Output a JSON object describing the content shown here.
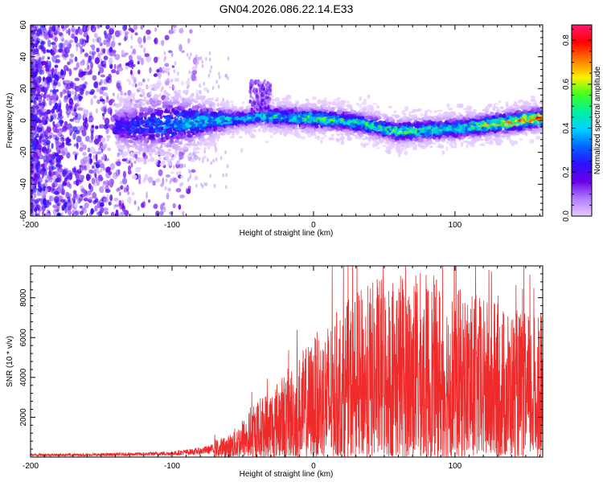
{
  "figure_title": "GN04.2026.086.22.14.E33",
  "colors": {
    "snr_line": "#ee2a2a",
    "colormap": [
      "#e6ccff",
      "#b07cff",
      "#6a00e8",
      "#2b10ff",
      "#0066ff",
      "#00d2ff",
      "#00f0a0",
      "#40ff20",
      "#ffee00",
      "#ff7700",
      "#ff0000",
      "#ff1870"
    ]
  },
  "chart_data": [
    {
      "id": "spectrogram",
      "type": "heatmap",
      "title": "GN04.2026.086.22.14.E33",
      "xlabel": "Height of straight line (km)",
      "ylabel": "Frequency (Hz)",
      "xlim": [
        -200,
        162
      ],
      "ylim": [
        -60,
        60
      ],
      "xticks": [
        -200,
        -100,
        0,
        100
      ],
      "xtick_labels": [
        "-200",
        "-100",
        "0",
        "100"
      ],
      "yticks": [
        -60,
        -40,
        -20,
        0,
        20,
        40,
        60
      ],
      "ytick_labels": [
        "-60",
        "-40",
        "-20",
        "0",
        "20",
        "40",
        "60"
      ],
      "colorbar": {
        "label": "Normalized spectral amplitude",
        "range": [
          0,
          0.87
        ],
        "ticks": [
          0.0,
          0.2,
          0.4,
          0.6,
          0.8
        ],
        "tick_labels": [
          "0.0",
          "0.2",
          "0.4",
          "0.6",
          "0.8"
        ]
      },
      "ridge_center_freq": {
        "x": [
          -200,
          -150,
          -130,
          -100,
          -70,
          -50,
          -35,
          -20,
          0,
          20,
          40,
          60,
          80,
          100,
          120,
          140,
          162
        ],
        "y": [
          0,
          -2,
          -4,
          -2,
          0,
          1,
          3,
          2,
          1,
          0,
          -3,
          -7,
          -6,
          -5,
          -3,
          -1,
          2
        ]
      },
      "ridge_amplitude": {
        "x": [
          -200,
          -150,
          -130,
          -100,
          -80,
          -60,
          -40,
          -20,
          0,
          20,
          40,
          60,
          80,
          100,
          120,
          140,
          162
        ],
        "y": [
          0.12,
          0.22,
          0.28,
          0.38,
          0.42,
          0.45,
          0.46,
          0.45,
          0.55,
          0.5,
          0.48,
          0.55,
          0.52,
          0.5,
          0.6,
          0.72,
          0.82
        ]
      }
    },
    {
      "id": "snr",
      "type": "line",
      "xlabel": "Height of straight line (km)",
      "ylabel": "SNR (10 * v/v)",
      "xlim": [
        -200,
        162
      ],
      "ylim": [
        0,
        9600
      ],
      "xticks": [
        -200,
        -100,
        0,
        100
      ],
      "xtick_labels": [
        "-200",
        "-100",
        "0",
        "100"
      ],
      "yticks": [
        2000,
        4000,
        6000,
        8000
      ],
      "ytick_labels": [
        "2000",
        "4000",
        "6000",
        "8000"
      ],
      "envelope": {
        "x": [
          -200,
          -160,
          -120,
          -100,
          -80,
          -60,
          -50,
          -40,
          -20,
          0,
          20,
          40,
          60,
          80,
          100,
          120,
          140,
          162
        ],
        "y": [
          150,
          150,
          200,
          250,
          400,
          700,
          1200,
          1800,
          2700,
          3800,
          4800,
          5500,
          6000,
          5800,
          5400,
          5000,
          4700,
          4400
        ]
      }
    }
  ]
}
